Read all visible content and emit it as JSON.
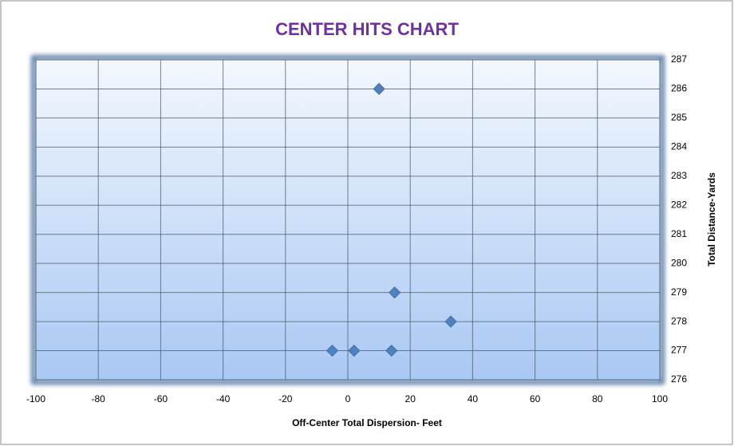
{
  "chart_data": {
    "type": "scatter",
    "title": "CENTER HITS CHART",
    "xlabel": "Off-Center Total Dispersion- Feet",
    "ylabel": "Total Distance-Yards",
    "x": [
      10,
      15,
      33,
      -5,
      2,
      14
    ],
    "y": [
      286,
      279,
      278,
      277,
      277,
      277
    ],
    "color": "#4f81bd",
    "title_color": "#7030a0",
    "xlim": [
      -100,
      100
    ],
    "xticks": [
      -100,
      -80,
      -60,
      -40,
      -20,
      0,
      20,
      40,
      60,
      80,
      100
    ],
    "ylim": [
      276,
      287
    ],
    "yticks": [
      276,
      277,
      278,
      279,
      280,
      281,
      282,
      283,
      284,
      285,
      286,
      287
    ],
    "grid": true,
    "yaxis_side": "right"
  }
}
